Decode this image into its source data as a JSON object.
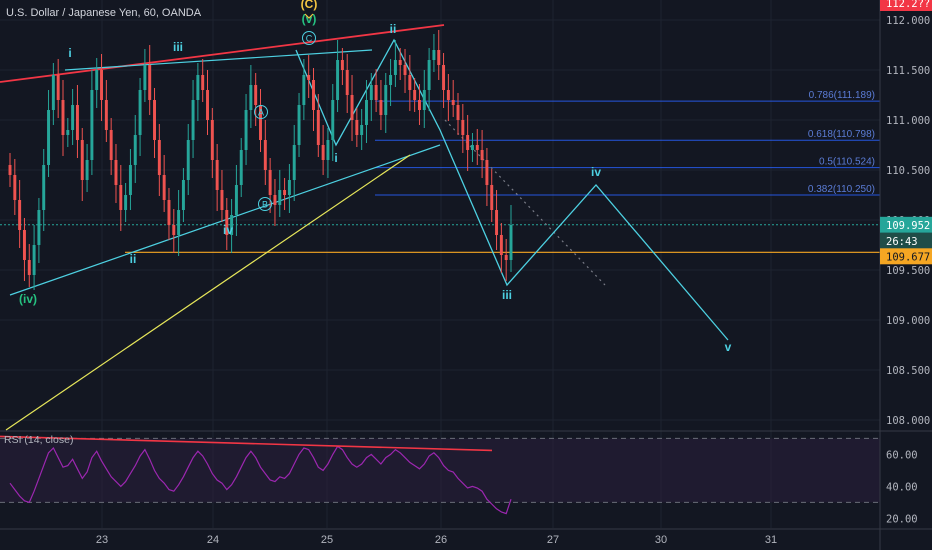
{
  "header": {
    "title": "U.S. Dollar / Japanese Yen, 60, OANDA"
  },
  "colors": {
    "bg": "#131722",
    "grid": "#1e2330",
    "axis_text": "#b2b5be",
    "up": "#26a69a",
    "down": "#ef5350",
    "wave_cyan": "#4dd0e1",
    "fib": "#2962ff",
    "support": "#f5a623",
    "trend_red": "#f23645",
    "trend_yellow": "#e6e65a",
    "rsi": "#9c27b0",
    "wave_green": "#26c281"
  },
  "chart_data": [
    {
      "type": "candlestick",
      "title": "U.S. Dollar / Japanese Yen, 60, OANDA",
      "y_ticks": [
        108.0,
        108.5,
        109.0,
        109.5,
        110.0,
        110.5,
        111.0,
        111.5,
        112.0
      ],
      "y_tick_labels": [
        "108.000",
        "108.500",
        "109.000",
        "109.500",
        "110.000",
        "110.500",
        "111.000",
        "111.500",
        "112.000"
      ],
      "ylim": [
        107.9,
        112.2
      ],
      "x_ticks": [
        {
          "day": 23,
          "label": "23"
        },
        {
          "day": 24,
          "label": "24"
        },
        {
          "day": 25,
          "label": "25"
        },
        {
          "day": 26,
          "label": "26"
        },
        {
          "day": 27,
          "label": "27"
        },
        {
          "day": 30,
          "label": "30"
        },
        {
          "day": 31,
          "label": "31"
        }
      ],
      "price_labels": {
        "last": "109.952",
        "countdown": "26:43",
        "support": "109.677",
        "top": "112.2??"
      },
      "levels": {
        "last": 109.952,
        "support": 109.677
      },
      "fib_levels": [
        {
          "label": "0.786(111.189)",
          "value": 111.189
        },
        {
          "label": "0.618(110.798)",
          "value": 110.798
        },
        {
          "label": "0.5(110.524)",
          "value": 110.524
        },
        {
          "label": "0.382(110.250)",
          "value": 110.25
        }
      ],
      "closes": [
        110.45,
        110.2,
        109.9,
        109.6,
        109.45,
        109.75,
        110.1,
        110.55,
        111.1,
        111.45,
        111.2,
        110.85,
        110.9,
        111.15,
        110.8,
        110.4,
        110.6,
        111.3,
        111.5,
        111.2,
        110.9,
        110.6,
        110.35,
        110.1,
        110.25,
        110.55,
        110.85,
        111.3,
        111.55,
        111.2,
        110.8,
        110.45,
        110.2,
        109.95,
        109.85,
        110.1,
        110.4,
        110.8,
        111.2,
        111.45,
        111.3,
        111.0,
        110.6,
        110.3,
        110.1,
        109.85,
        110.05,
        110.35,
        110.7,
        111.1,
        111.35,
        111.15,
        110.8,
        110.5,
        110.25,
        110.15,
        110.3,
        110.25,
        110.4,
        110.75,
        111.15,
        111.45,
        111.4,
        111.1,
        110.75,
        110.6,
        110.8,
        111.2,
        111.6,
        111.5,
        111.25,
        111.0,
        110.85,
        110.95,
        111.2,
        111.35,
        111.2,
        111.05,
        111.35,
        111.45,
        111.6,
        111.55,
        111.45,
        111.3,
        111.2,
        111.1,
        111.3,
        111.6,
        111.7,
        111.55,
        111.3,
        111.2,
        111.15,
        111.0,
        110.85,
        110.7,
        110.75,
        110.7,
        110.6,
        110.35,
        110.1,
        109.85,
        109.65,
        109.6,
        109.95
      ],
      "rsi": {
        "label": "RSI (14, close)",
        "y_ticks": [
          20,
          40,
          60
        ],
        "y_tick_labels": [
          "20.00",
          "40.00",
          "60.00"
        ],
        "bands": [
          30,
          70
        ],
        "ylim": [
          14,
          74
        ],
        "values": [
          42,
          38,
          34,
          31,
          30,
          37,
          45,
          53,
          61,
          64,
          58,
          52,
          53,
          57,
          51,
          45,
          49,
          58,
          62,
          56,
          51,
          46,
          43,
          40,
          43,
          48,
          53,
          59,
          63,
          57,
          50,
          45,
          42,
          38,
          37,
          41,
          46,
          52,
          58,
          62,
          59,
          54,
          48,
          44,
          42,
          38,
          41,
          46,
          52,
          58,
          62,
          58,
          52,
          48,
          44,
          43,
          46,
          45,
          48,
          54,
          60,
          64,
          63,
          58,
          52,
          50,
          54,
          60,
          65,
          63,
          58,
          54,
          52,
          54,
          58,
          60,
          57,
          54,
          58,
          60,
          63,
          61,
          58,
          55,
          53,
          51,
          54,
          59,
          61,
          58,
          53,
          50,
          49,
          45,
          42,
          39,
          40,
          39,
          37,
          32,
          29,
          26,
          24,
          23,
          32
        ]
      },
      "wave_labels": {
        "w_i": "i",
        "w_iii": "iii",
        "w_ii": "ii",
        "w_iv": "iv",
        "w_iv_paren": "(iv)",
        "w_v_paren": "(v)",
        "w_c_paren": "(C)",
        "w_b": "B",
        "w_a": "A",
        "w_c": "C",
        "r_ii": "ii",
        "r_i": "i",
        "r_iii": "iii",
        "r_iv": "iv",
        "r_v": "v"
      }
    }
  ]
}
